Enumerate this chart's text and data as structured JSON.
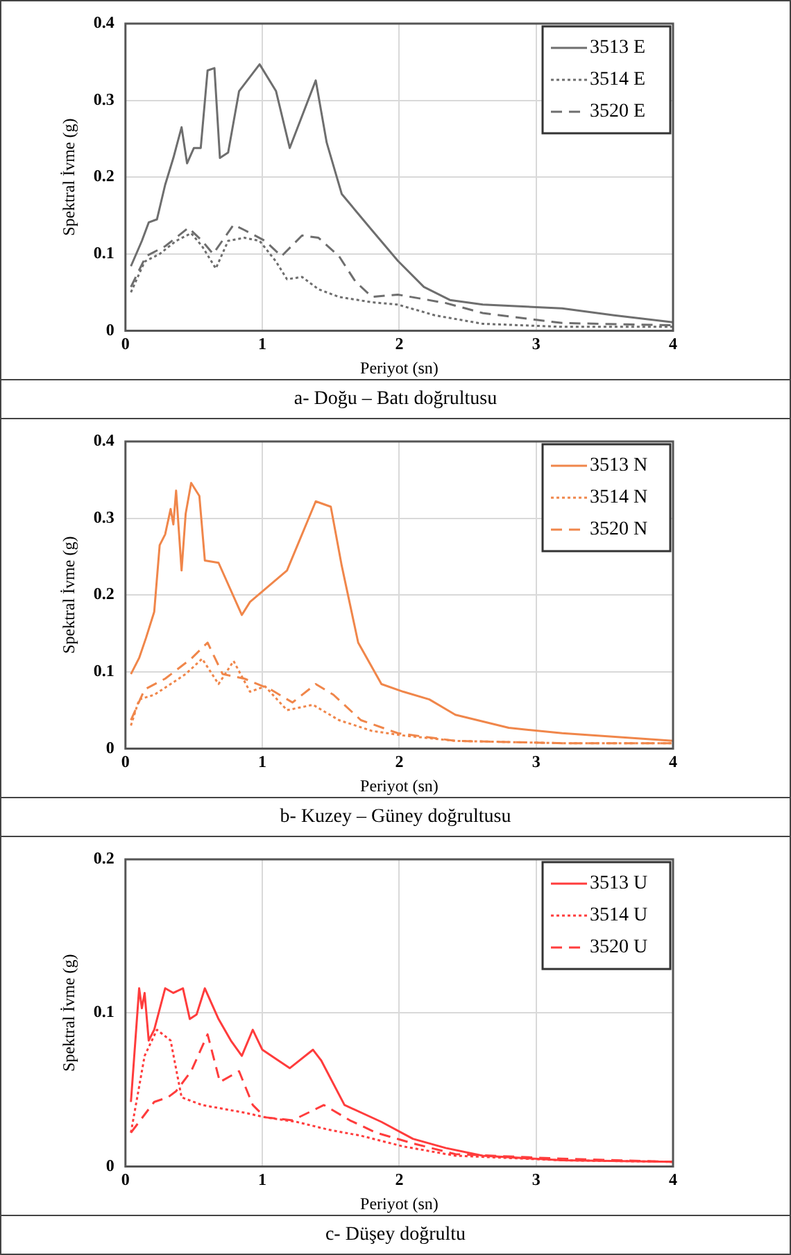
{
  "chart_data": [
    {
      "type": "line",
      "xlabel": "Periyot (sn)",
      "ylabel": "Spektral İvme (g)",
      "annotations": [
        "a-  Doğu – Batı doğrultusu"
      ],
      "xlim": [
        0,
        4
      ],
      "xticks": [
        0,
        1,
        2,
        3,
        4
      ],
      "ylim": [
        0,
        0.4
      ],
      "yticks": [
        0,
        0.1,
        0.2,
        0.3,
        0.4
      ],
      "grid": true,
      "legend": "top right",
      "marker": "none",
      "series": [
        {
          "name": "3513 E",
          "color": "#6e6e6e",
          "line_style": "solid",
          "x": [
            0.04,
            0.12,
            0.17,
            0.23,
            0.29,
            0.35,
            0.41,
            0.45,
            0.5,
            0.55,
            0.6,
            0.65,
            0.69,
            0.75,
            0.83,
            0.98,
            1.1,
            1.2,
            1.39,
            1.47,
            1.58,
            1.8,
            1.99,
            2.18,
            2.37,
            2.61,
            3.19,
            3.57,
            4
          ],
          "values": [
            0.084,
            0.117,
            0.141,
            0.145,
            0.19,
            0.225,
            0.265,
            0.218,
            0.238,
            0.238,
            0.339,
            0.342,
            0.225,
            0.232,
            0.312,
            0.347,
            0.312,
            0.238,
            0.326,
            0.245,
            0.178,
            0.131,
            0.091,
            0.057,
            0.04,
            0.034,
            0.029,
            0.02,
            0.011
          ]
        },
        {
          "name": "3514 E",
          "color": "#6e6e6e",
          "line_style": "dotted",
          "x": [
            0.04,
            0.14,
            0.25,
            0.37,
            0.48,
            0.56,
            0.66,
            0.75,
            0.87,
            0.98,
            1.1,
            1.18,
            1.29,
            1.41,
            1.56,
            1.8,
            1.99,
            2.26,
            2.61,
            3.19,
            4
          ],
          "values": [
            0.05,
            0.09,
            0.1,
            0.117,
            0.127,
            0.11,
            0.081,
            0.117,
            0.121,
            0.117,
            0.09,
            0.067,
            0.07,
            0.054,
            0.044,
            0.037,
            0.034,
            0.02,
            0.009,
            0.005,
            0.005
          ]
        },
        {
          "name": "3520 E",
          "color": "#6e6e6e",
          "line_style": "dashed",
          "x": [
            0.04,
            0.15,
            0.29,
            0.46,
            0.56,
            0.64,
            0.79,
            0.87,
            1.02,
            1.14,
            1.29,
            1.41,
            1.56,
            1.68,
            1.8,
            1.99,
            2.34,
            2.61,
            3.19,
            4
          ],
          "values": [
            0.057,
            0.097,
            0.11,
            0.134,
            0.117,
            0.1,
            0.138,
            0.131,
            0.117,
            0.097,
            0.124,
            0.121,
            0.097,
            0.064,
            0.044,
            0.047,
            0.036,
            0.023,
            0.01,
            0.007
          ]
        }
      ]
    },
    {
      "type": "line",
      "xlabel": "Periyot (sn)",
      "ylabel": "Spektral İvme (g)",
      "annotations": [
        "b-  Kuzey – Güney doğrultusu"
      ],
      "xlim": [
        0,
        4
      ],
      "xticks": [
        0,
        1,
        2,
        3,
        4
      ],
      "ylim": [
        0,
        0.4
      ],
      "yticks": [
        0,
        0.1,
        0.2,
        0.3,
        0.4
      ],
      "grid": true,
      "legend": "top right",
      "marker": "none",
      "series": [
        {
          "name": "3513 N",
          "color": "#f0864a",
          "line_style": "solid",
          "x": [
            0.04,
            0.1,
            0.15,
            0.21,
            0.25,
            0.29,
            0.33,
            0.35,
            0.37,
            0.41,
            0.44,
            0.48,
            0.54,
            0.58,
            0.68,
            0.85,
            0.91,
            1.18,
            1.39,
            1.5,
            1.58,
            1.7,
            1.87,
            2.03,
            2.22,
            2.41,
            2.8,
            3.19,
            4
          ],
          "values": [
            0.097,
            0.118,
            0.144,
            0.178,
            0.265,
            0.279,
            0.312,
            0.292,
            0.336,
            0.232,
            0.306,
            0.346,
            0.329,
            0.245,
            0.242,
            0.174,
            0.191,
            0.232,
            0.322,
            0.315,
            0.238,
            0.138,
            0.084,
            0.074,
            0.064,
            0.044,
            0.027,
            0.02,
            0.01
          ]
        },
        {
          "name": "3514 N",
          "color": "#f0864a",
          "line_style": "dotted",
          "x": [
            0.04,
            0.1,
            0.21,
            0.33,
            0.44,
            0.56,
            0.68,
            0.79,
            0.91,
            1.02,
            1.18,
            1.37,
            1.56,
            1.8,
            2.03,
            2.41,
            3.19,
            4
          ],
          "values": [
            0.03,
            0.064,
            0.07,
            0.084,
            0.097,
            0.117,
            0.084,
            0.114,
            0.074,
            0.081,
            0.05,
            0.057,
            0.037,
            0.023,
            0.017,
            0.01,
            0.007,
            0.007
          ]
        },
        {
          "name": "3520 N",
          "color": "#f0864a",
          "line_style": "dashed",
          "x": [
            0.04,
            0.14,
            0.29,
            0.48,
            0.6,
            0.71,
            0.87,
            1.06,
            1.22,
            1.39,
            1.52,
            1.72,
            1.99,
            2.41,
            3.19,
            4
          ],
          "values": [
            0.037,
            0.077,
            0.091,
            0.117,
            0.138,
            0.097,
            0.091,
            0.077,
            0.06,
            0.084,
            0.07,
            0.037,
            0.02,
            0.01,
            0.007,
            0.007
          ]
        }
      ]
    },
    {
      "type": "line",
      "xlabel": "Periyot (sn)",
      "ylabel": "Spektral İvme (g)",
      "annotations": [
        "c-  Düşey doğrultu"
      ],
      "xlim": [
        0,
        4
      ],
      "xticks": [
        0,
        1,
        2,
        3,
        4
      ],
      "ylim": [
        0,
        0.2
      ],
      "yticks": [
        0,
        0.1,
        0.2
      ],
      "grid": true,
      "legend": "top right",
      "marker": "none",
      "series": [
        {
          "name": "3513 U",
          "color": "#ff3c3c",
          "line_style": "solid",
          "x": [
            0.04,
            0.1,
            0.12,
            0.14,
            0.17,
            0.21,
            0.29,
            0.35,
            0.42,
            0.47,
            0.52,
            0.58,
            0.68,
            0.77,
            0.85,
            0.93,
            1.0,
            1.2,
            1.37,
            1.43,
            1.6,
            1.87,
            2.1,
            2.34,
            2.61,
            3.19,
            4
          ],
          "values": [
            0.042,
            0.116,
            0.103,
            0.113,
            0.082,
            0.089,
            0.116,
            0.113,
            0.116,
            0.096,
            0.099,
            0.116,
            0.096,
            0.082,
            0.072,
            0.089,
            0.076,
            0.064,
            0.076,
            0.069,
            0.04,
            0.029,
            0.018,
            0.012,
            0.007,
            0.004,
            0.003
          ]
        },
        {
          "name": "3514 U",
          "color": "#ff3c3c",
          "line_style": "dotted",
          "x": [
            0.04,
            0.14,
            0.23,
            0.33,
            0.41,
            0.56,
            0.87,
            1.02,
            1.25,
            1.48,
            1.72,
            2.03,
            2.41,
            3.19,
            4
          ],
          "values": [
            0.022,
            0.072,
            0.089,
            0.082,
            0.045,
            0.04,
            0.035,
            0.032,
            0.029,
            0.024,
            0.02,
            0.013,
            0.007,
            0.004,
            0.003
          ]
        },
        {
          "name": "3520 U",
          "color": "#ff3c3c",
          "line_style": "dashed",
          "x": [
            0.04,
            0.21,
            0.31,
            0.37,
            0.48,
            0.6,
            0.69,
            0.83,
            0.93,
            1.02,
            1.22,
            1.45,
            1.64,
            1.83,
            2.1,
            2.41,
            3.19,
            4
          ],
          "values": [
            0.022,
            0.042,
            0.045,
            0.049,
            0.062,
            0.086,
            0.055,
            0.062,
            0.04,
            0.032,
            0.03,
            0.04,
            0.03,
            0.022,
            0.015,
            0.008,
            0.005,
            0.003
          ]
        }
      ]
    }
  ]
}
